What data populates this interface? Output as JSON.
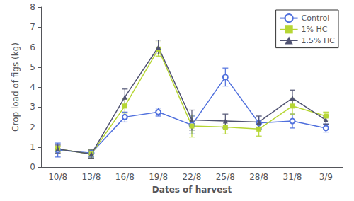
{
  "chart_data": {
    "type": "line",
    "categories": [
      "10/8",
      "13/8",
      "16/8",
      "19/8",
      "22/8",
      "25/8",
      "28/8",
      "31/8",
      "3/9"
    ],
    "series": [
      {
        "name": "Control",
        "marker": "open circle",
        "values": [
          0.85,
          0.7,
          2.5,
          2.75,
          2.1,
          4.5,
          2.2,
          2.3,
          1.95
        ],
        "errors": [
          0.35,
          0.2,
          0.25,
          0.2,
          0.45,
          0.45,
          0.3,
          0.35,
          0.2
        ]
      },
      {
        "name": "1% HC",
        "marker": "square",
        "values": [
          0.9,
          0.65,
          3.05,
          5.9,
          2.05,
          2.0,
          1.9,
          3.05,
          2.55
        ],
        "errors": [
          0.15,
          0.2,
          0.35,
          0.35,
          0.55,
          0.35,
          0.35,
          0.4,
          0.2
        ]
      },
      {
        "name": "1.5% HC",
        "marker": "triangle",
        "values": [
          0.9,
          0.65,
          3.5,
          6.0,
          2.35,
          2.3,
          2.25,
          3.45,
          2.35
        ],
        "errors": [
          0.2,
          0.2,
          0.4,
          0.35,
          0.5,
          0.35,
          0.3,
          0.4,
          0.2
        ]
      }
    ],
    "xlabel": "Dates of harvest",
    "ylabel": "Crop load of figs (kg)",
    "ylim": [
      0,
      8
    ],
    "yticks": [
      0,
      1,
      2,
      3,
      4,
      5,
      6,
      7,
      8
    ],
    "grid": false,
    "legend": "upper right"
  }
}
